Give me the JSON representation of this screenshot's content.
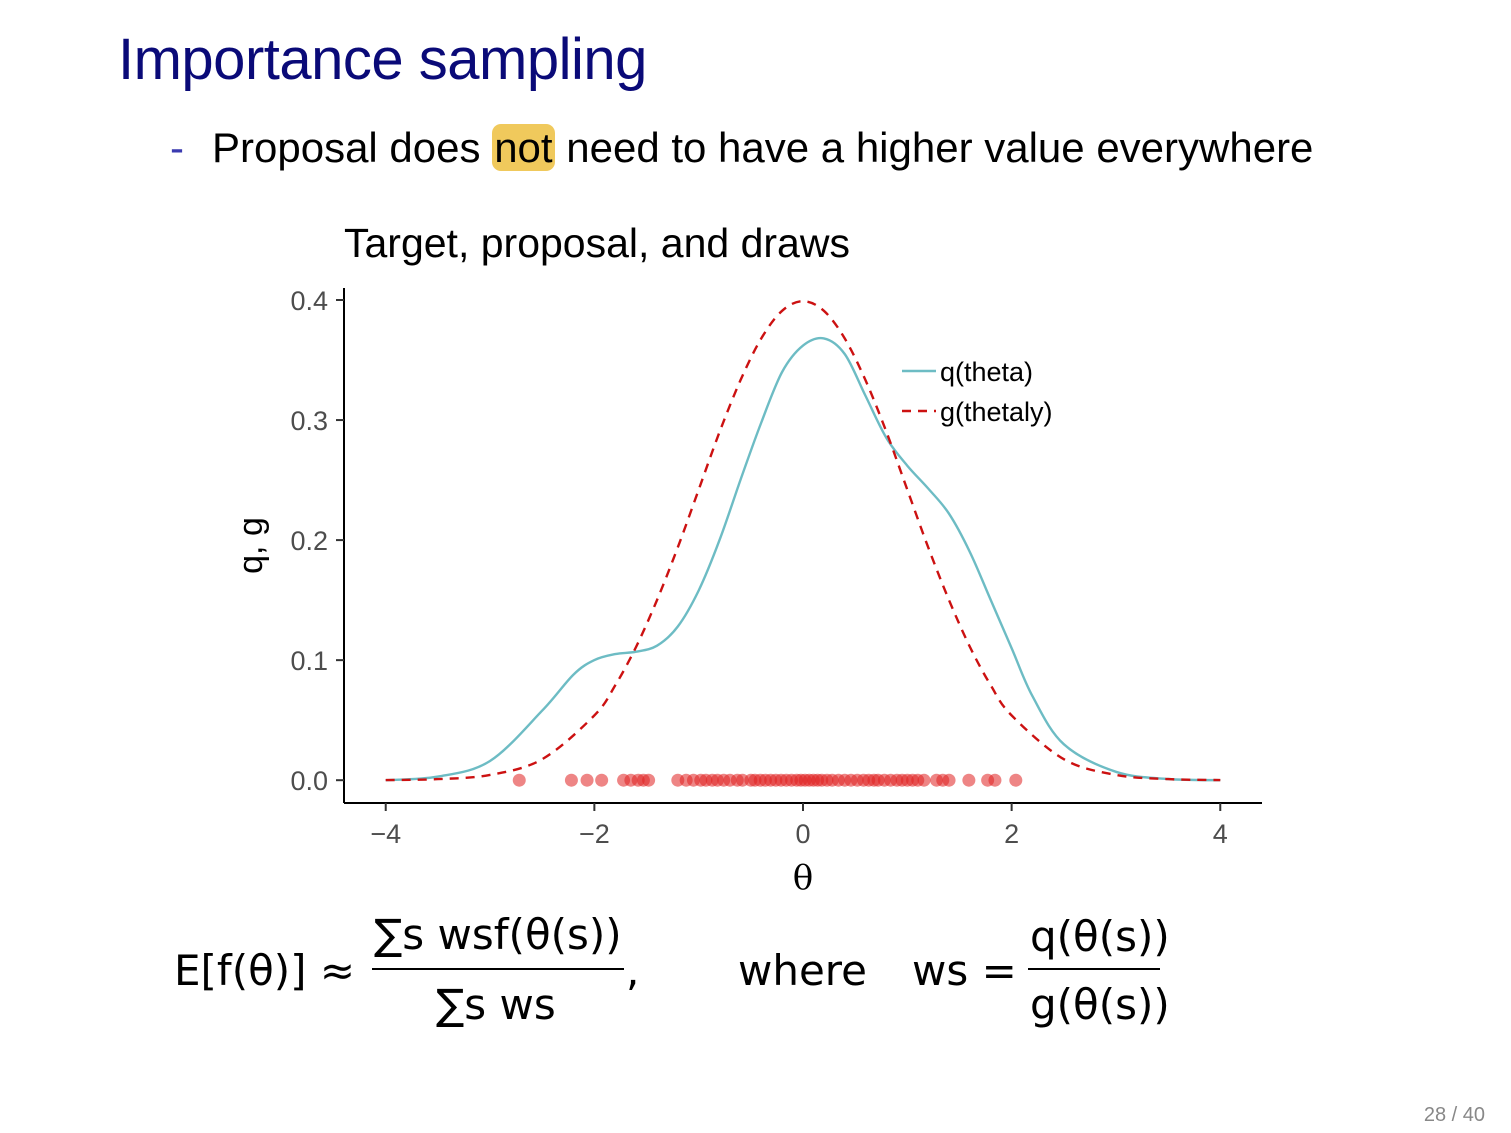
{
  "slide": {
    "title": "Importance sampling",
    "bullet_dash": "-",
    "bullet_before": "Proposal does ",
    "bullet_highlight": "not",
    "bullet_after": " need to have a higher value everywhere",
    "page_number": "28 / 40"
  },
  "formula": {
    "lhs": "E[f(θ)] ≈",
    "numerator": "∑s wsf(θ(s))",
    "denominator": "∑s ws",
    "comma": ",",
    "where": "where",
    "ws_eq": "ws =",
    "w_numerator": "q(θ(s))",
    "w_denominator": "g(θ(s))"
  },
  "chart_data": {
    "type": "line",
    "title": "Target, proposal, and draws",
    "xlabel": "θ",
    "ylabel": "q, g",
    "xlim": [
      -4.4,
      4.4
    ],
    "ylim": [
      -0.019,
      0.41
    ],
    "x_ticks": [
      -4,
      -2,
      0,
      2,
      4
    ],
    "x_tick_labels": [
      "−4",
      "−2",
      "0",
      "2",
      "4"
    ],
    "y_ticks": [
      0.0,
      0.1,
      0.2,
      0.3,
      0.4
    ],
    "y_tick_labels": [
      "0.0",
      "0.1",
      "0.2",
      "0.3",
      "0.4"
    ],
    "grid": false,
    "legend_position": "top-right",
    "series": [
      {
        "name": "q(theta)",
        "style": "solid",
        "color": "#6dbcc4",
        "x": [
          -4.0,
          -3.5,
          -3.0,
          -2.5,
          -2.2,
          -2.0,
          -1.8,
          -1.6,
          -1.4,
          -1.2,
          -1.0,
          -0.8,
          -0.6,
          -0.4,
          -0.2,
          0.0,
          0.2,
          0.4,
          0.6,
          0.8,
          1.0,
          1.2,
          1.4,
          1.6,
          1.8,
          2.0,
          2.2,
          2.5,
          3.0,
          3.5,
          4.0
        ],
        "values": [
          0.0,
          0.003,
          0.016,
          0.058,
          0.088,
          0.1,
          0.105,
          0.107,
          0.112,
          0.128,
          0.158,
          0.2,
          0.25,
          0.298,
          0.34,
          0.362,
          0.368,
          0.355,
          0.32,
          0.285,
          0.262,
          0.243,
          0.222,
          0.19,
          0.15,
          0.11,
          0.07,
          0.03,
          0.007,
          0.001,
          0.0
        ]
      },
      {
        "name": "g(thetaly)",
        "style": "dashed",
        "color": "#cc1111",
        "x": [
          -4.0,
          -3.5,
          -3.0,
          -2.5,
          -2.0,
          -1.8,
          -1.6,
          -1.4,
          -1.2,
          -1.0,
          -0.8,
          -0.6,
          -0.4,
          -0.2,
          0.0,
          0.2,
          0.4,
          0.6,
          0.8,
          1.0,
          1.2,
          1.4,
          1.6,
          1.8,
          2.0,
          2.5,
          3.0,
          3.5,
          4.0
        ],
        "values": [
          0.0001,
          0.0009,
          0.0044,
          0.0175,
          0.054,
          0.079,
          0.111,
          0.15,
          0.194,
          0.242,
          0.29,
          0.333,
          0.368,
          0.391,
          0.399,
          0.391,
          0.368,
          0.333,
          0.29,
          0.242,
          0.194,
          0.15,
          0.111,
          0.079,
          0.054,
          0.0175,
          0.0044,
          0.0009,
          0.0001
        ]
      }
    ],
    "draws": {
      "color": "#e02020",
      "y": 0.0,
      "x": [
        -2.72,
        -2.22,
        -2.07,
        -1.93,
        -1.72,
        -1.65,
        -1.58,
        -1.53,
        -1.48,
        -1.2,
        -1.12,
        -1.05,
        -0.98,
        -0.93,
        -0.87,
        -0.82,
        -0.76,
        -0.7,
        -0.63,
        -0.58,
        -0.5,
        -0.46,
        -0.41,
        -0.36,
        -0.31,
        -0.26,
        -0.21,
        -0.16,
        -0.11,
        -0.06,
        -0.02,
        0.02,
        0.06,
        0.1,
        0.14,
        0.18,
        0.23,
        0.28,
        0.34,
        0.4,
        0.46,
        0.52,
        0.58,
        0.63,
        0.68,
        0.72,
        0.78,
        0.84,
        0.9,
        0.95,
        1.0,
        1.05,
        1.1,
        1.16,
        1.28,
        1.34,
        1.4,
        1.59,
        1.77,
        1.84,
        2.04
      ]
    }
  }
}
